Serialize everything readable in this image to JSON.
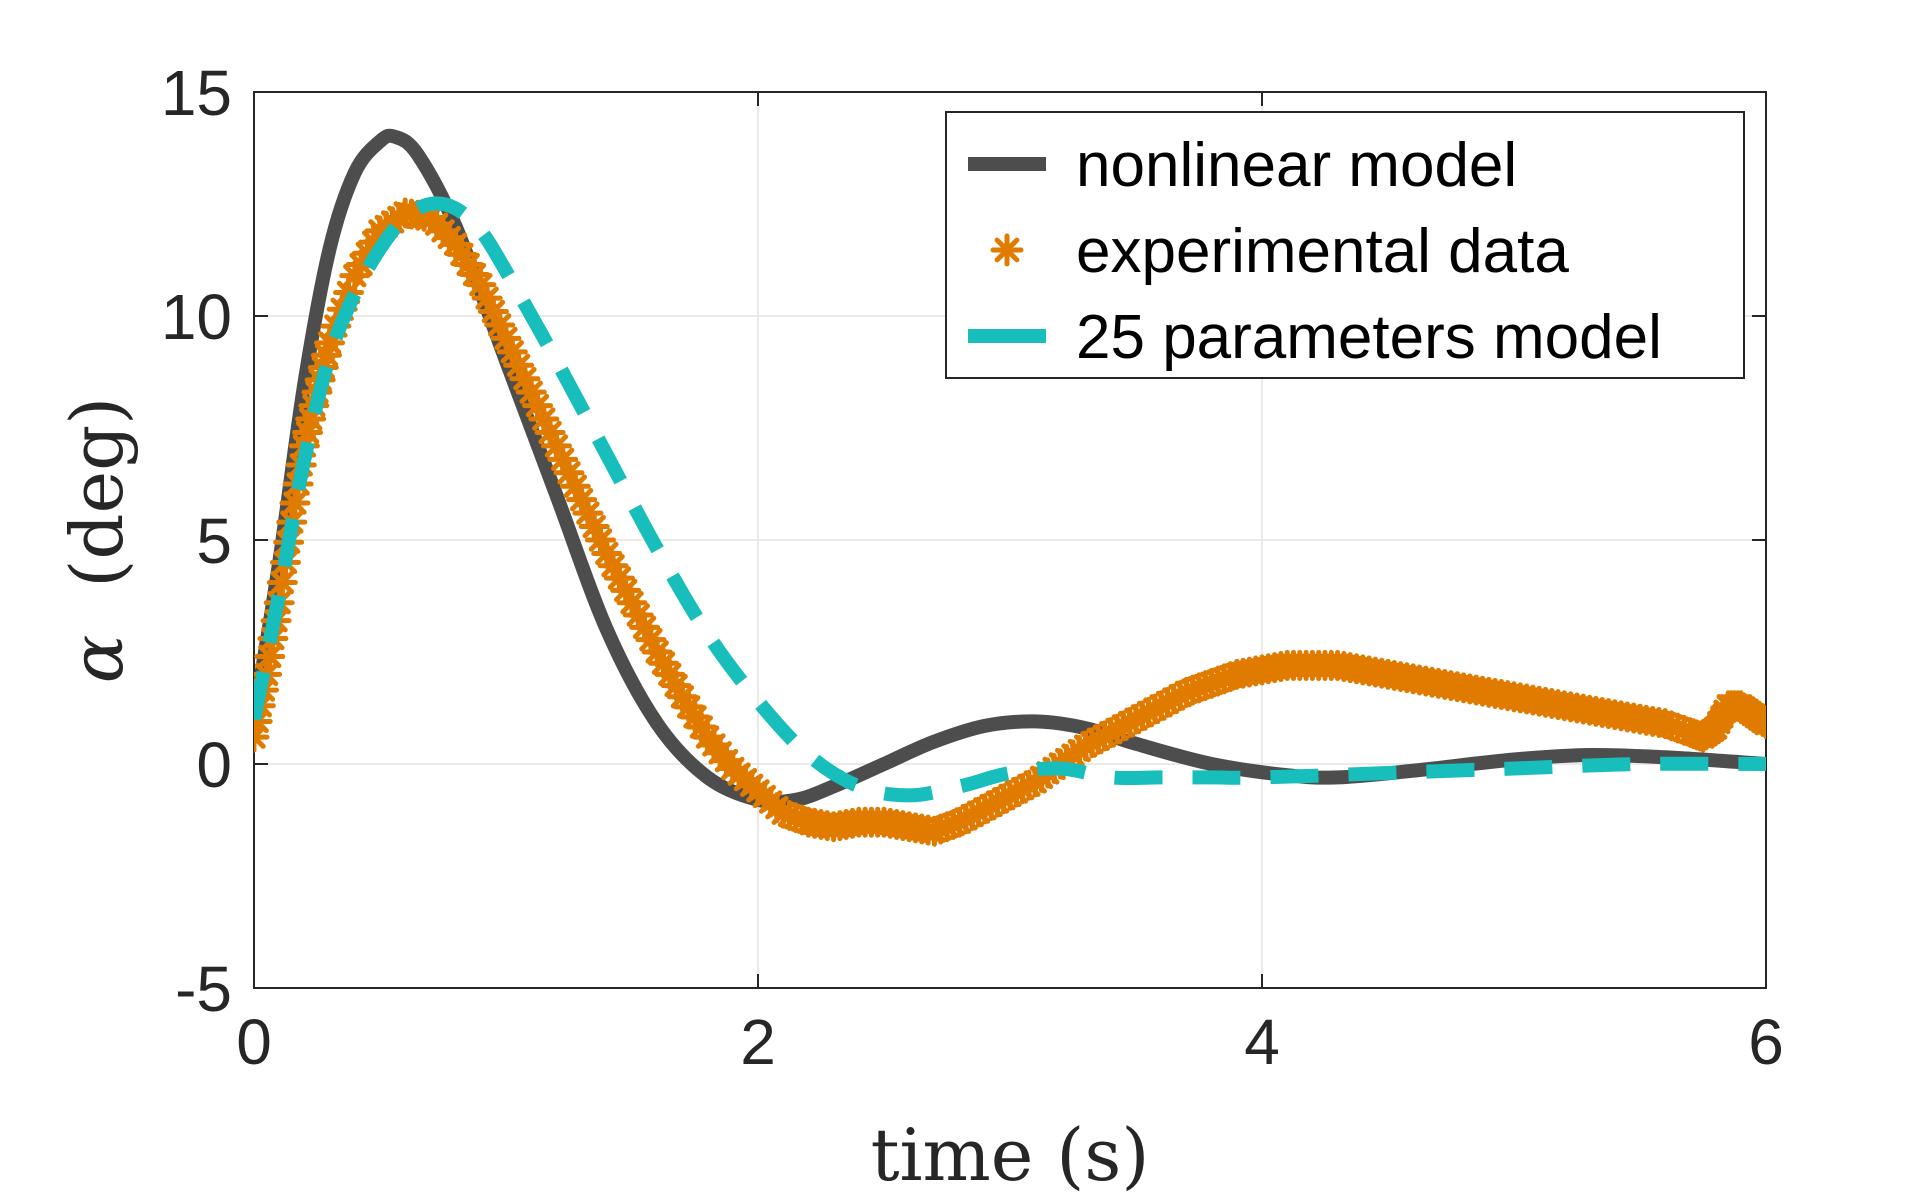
{
  "chart_data": {
    "type": "line",
    "xlabel": "time (s)",
    "ylabel_symbol": "α",
    "ylabel": "(deg)",
    "xlim": [
      0,
      6
    ],
    "ylim": [
      -5,
      15
    ],
    "xticks": [
      0,
      2,
      4,
      6
    ],
    "yticks": [
      -5,
      0,
      5,
      10,
      15
    ],
    "xtick_labels": [
      "0",
      "2",
      "4",
      "6"
    ],
    "ytick_labels": [
      "-5",
      "0",
      "5",
      "10",
      "15"
    ],
    "grid": true,
    "legend_position": "top-right",
    "series": [
      {
        "name": "nonlinear model",
        "style": "solid",
        "color": "#4d4d4d",
        "x": [
          0,
          0.1,
          0.2,
          0.3,
          0.4,
          0.5,
          0.56,
          0.65,
          0.8,
          1.0,
          1.2,
          1.4,
          1.6,
          1.8,
          2.0,
          2.15,
          2.3,
          2.5,
          2.7,
          2.9,
          3.1,
          3.3,
          3.5,
          3.8,
          4.1,
          4.3,
          4.6,
          5.0,
          5.3,
          5.6,
          6.0
        ],
        "y": [
          1.0,
          4.5,
          8.5,
          11.5,
          13.2,
          13.9,
          14.0,
          13.6,
          12.0,
          9.0,
          6.0,
          3.0,
          0.9,
          -0.3,
          -0.8,
          -0.8,
          -0.5,
          0.0,
          0.5,
          0.85,
          0.95,
          0.8,
          0.45,
          0.0,
          -0.25,
          -0.3,
          -0.15,
          0.1,
          0.2,
          0.15,
          0.0
        ]
      },
      {
        "name": "experimental data",
        "style": "markers",
        "color": "#e07b00",
        "x": [
          0,
          0.05,
          0.1,
          0.15,
          0.2,
          0.25,
          0.3,
          0.4,
          0.5,
          0.6,
          0.7,
          0.8,
          0.9,
          1.0,
          1.1,
          1.2,
          1.3,
          1.4,
          1.5,
          1.6,
          1.7,
          1.8,
          1.9,
          2.0,
          2.1,
          2.2,
          2.3,
          2.4,
          2.5,
          2.6,
          2.7,
          2.8,
          2.9,
          3.0,
          3.1,
          3.2,
          3.3,
          3.4,
          3.5,
          3.6,
          3.7,
          3.8,
          3.9,
          4.0,
          4.1,
          4.2,
          4.3,
          4.4,
          4.5,
          4.6,
          4.7,
          4.8,
          4.9,
          5.0,
          5.1,
          5.2,
          5.3,
          5.4,
          5.5,
          5.6,
          5.7,
          5.75,
          5.8,
          5.85,
          5.9,
          5.95,
          6.0
        ],
        "y": [
          0.6,
          2.0,
          3.6,
          5.4,
          7.1,
          8.3,
          9.4,
          10.9,
          11.9,
          12.3,
          12.2,
          11.6,
          10.7,
          9.5,
          8.3,
          7.1,
          5.9,
          4.7,
          3.6,
          2.5,
          1.5,
          0.6,
          -0.1,
          -0.6,
          -1.1,
          -1.3,
          -1.4,
          -1.3,
          -1.3,
          -1.4,
          -1.5,
          -1.3,
          -1.0,
          -0.7,
          -0.4,
          0.0,
          0.4,
          0.7,
          1.0,
          1.3,
          1.6,
          1.8,
          2.0,
          2.1,
          2.2,
          2.2,
          2.2,
          2.1,
          2.0,
          1.9,
          1.8,
          1.7,
          1.6,
          1.5,
          1.4,
          1.3,
          1.2,
          1.1,
          1.0,
          0.9,
          0.7,
          0.6,
          0.8,
          1.3,
          1.3,
          1.1,
          0.9
        ]
      },
      {
        "name": "25 parameters model",
        "style": "dashed",
        "color": "#17bebb",
        "x": [
          0,
          0.1,
          0.2,
          0.3,
          0.4,
          0.5,
          0.6,
          0.7,
          0.8,
          0.9,
          1.0,
          1.2,
          1.4,
          1.6,
          1.8,
          2.0,
          2.2,
          2.4,
          2.6,
          2.8,
          3.0,
          3.2,
          3.4,
          3.6,
          3.8,
          4.0,
          4.5,
          5.0,
          5.5,
          6.0
        ],
        "y": [
          1.0,
          3.8,
          6.8,
          9.1,
          10.5,
          11.5,
          12.2,
          12.5,
          12.4,
          11.9,
          11.0,
          9.0,
          6.9,
          4.8,
          2.9,
          1.4,
          0.2,
          -0.5,
          -0.7,
          -0.5,
          -0.2,
          -0.1,
          -0.3,
          -0.3,
          -0.3,
          -0.3,
          -0.2,
          -0.1,
          0.0,
          0.0
        ]
      }
    ]
  }
}
